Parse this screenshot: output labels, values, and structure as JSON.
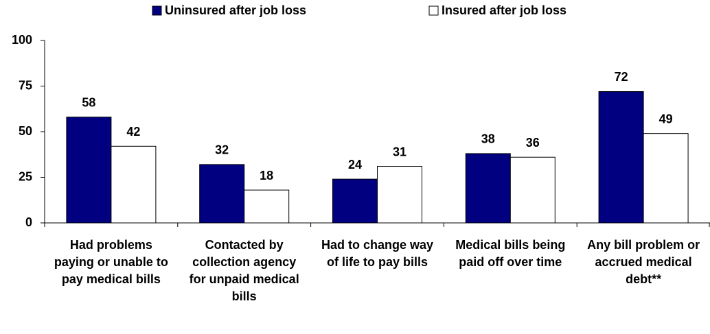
{
  "chart_data": {
    "type": "bar",
    "categories": [
      "Had problems paying or unable to pay medical bills",
      "Contacted by collection agency for unpaid medical bills",
      "Had to change way of life to pay bills",
      "Medical bills being paid off over time",
      "Any bill problem or accrued medical debt**"
    ],
    "series": [
      {
        "name": "Uninsured after job loss",
        "color": "#000080",
        "values": [
          58,
          32,
          24,
          38,
          72
        ]
      },
      {
        "name": "Insured after job loss",
        "color": "#ffffff",
        "values": [
          42,
          18,
          31,
          36,
          49
        ]
      }
    ],
    "ylim": [
      0,
      100
    ],
    "yticks": [
      0,
      25,
      50,
      75,
      100
    ]
  }
}
